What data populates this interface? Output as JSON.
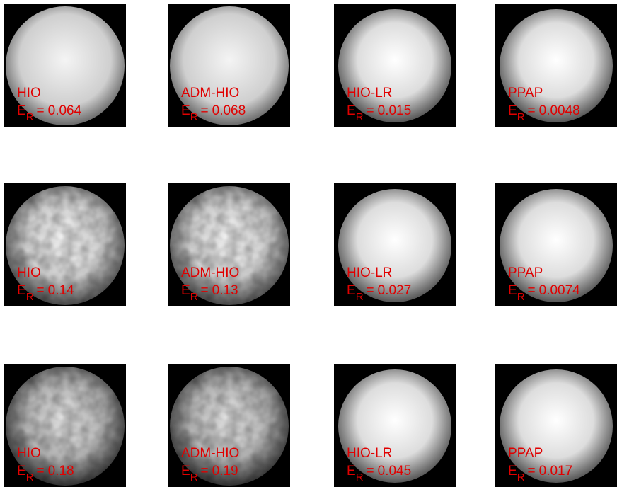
{
  "panels": [
    [
      {
        "method": "HIO",
        "metric": "E",
        "metric_sub": "R",
        "relation": "=",
        "value": 0.064
      },
      {
        "method": "ADM-HIO",
        "metric": "E",
        "metric_sub": "R",
        "relation": "=",
        "value": 0.068
      },
      {
        "method": "HIO-LR",
        "metric": "E",
        "metric_sub": "R",
        "relation": "=",
        "value": 0.015
      },
      {
        "method": "PPAP",
        "metric": "E",
        "metric_sub": "R",
        "relation": "=",
        "value": 0.0048
      }
    ],
    [
      {
        "method": "HIO",
        "metric": "E",
        "metric_sub": "R",
        "relation": "=",
        "value": 0.14
      },
      {
        "method": "ADM-HIO",
        "metric": "E",
        "metric_sub": "R",
        "relation": "=",
        "value": 0.13
      },
      {
        "method": "HIO-LR",
        "metric": "E",
        "metric_sub": "R",
        "relation": "=",
        "value": 0.027
      },
      {
        "method": "PPAP",
        "metric": "E",
        "metric_sub": "R",
        "relation": "=",
        "value": 0.0074
      }
    ],
    [
      {
        "method": "HIO",
        "metric": "E",
        "metric_sub": "R",
        "relation": "=",
        "value": 0.18
      },
      {
        "method": "ADM-HIO",
        "metric": "E",
        "metric_sub": "R",
        "relation": "=",
        "value": 0.19
      },
      {
        "method": "HIO-LR",
        "metric": "E",
        "metric_sub": "R",
        "relation": "=",
        "value": 0.045
      },
      {
        "method": "PPAP",
        "metric": "E",
        "metric_sub": "R",
        "relation": "=",
        "value": 0.017
      }
    ]
  ]
}
